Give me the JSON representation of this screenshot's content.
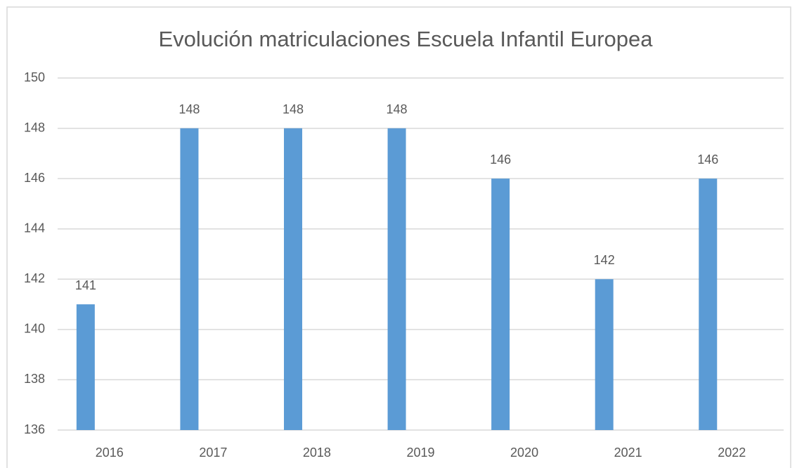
{
  "chart_data": {
    "type": "bar",
    "title": "Evolución matriculaciones Escuela Infantil Europea",
    "categories": [
      "2016",
      "2017",
      "2018",
      "2019",
      "2020",
      "2021",
      "2022"
    ],
    "values": [
      141,
      148,
      148,
      148,
      146,
      142,
      146
    ],
    "color": "#5b9bd5",
    "ylim": [
      136,
      150
    ],
    "yticks": [
      136,
      138,
      140,
      142,
      144,
      146,
      148,
      150
    ],
    "grid": true
  }
}
